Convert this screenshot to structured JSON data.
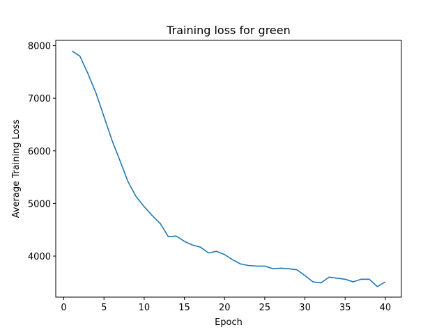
{
  "chart_data": {
    "type": "line",
    "title": "Training loss for green",
    "xlabel": "Epoch",
    "ylabel": "Average Training Loss",
    "xlim": [
      -1,
      42
    ],
    "ylim": [
      3220,
      8100
    ],
    "xticks": [
      0,
      5,
      10,
      15,
      20,
      25,
      30,
      35,
      40
    ],
    "yticks": [
      4000,
      5000,
      6000,
      7000,
      8000
    ],
    "grid": false,
    "series": [
      {
        "color": "#1f77b4",
        "x": [
          1,
          2,
          3,
          4,
          5,
          6,
          7,
          8,
          9,
          10,
          11,
          12,
          13,
          14,
          15,
          16,
          17,
          18,
          19,
          20,
          21,
          22,
          23,
          24,
          25,
          26,
          27,
          28,
          29,
          30,
          31,
          32,
          33,
          34,
          35,
          36,
          37,
          38,
          39,
          40
        ],
        "y": [
          7900,
          7800,
          7470,
          7100,
          6650,
          6200,
          5810,
          5410,
          5130,
          4940,
          4770,
          4620,
          4370,
          4380,
          4280,
          4210,
          4170,
          4060,
          4090,
          4030,
          3930,
          3850,
          3820,
          3810,
          3810,
          3760,
          3770,
          3760,
          3740,
          3630,
          3510,
          3490,
          3600,
          3580,
          3560,
          3510,
          3560,
          3560,
          3420,
          3510
        ]
      }
    ]
  }
}
